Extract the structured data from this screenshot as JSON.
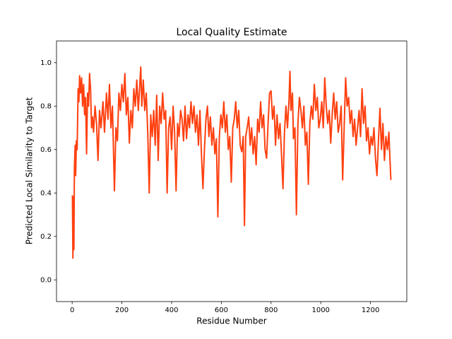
{
  "chart_data": {
    "type": "line",
    "title": "Local Quality Estimate",
    "xlabel": "Residue Number",
    "ylabel": "Predicted Local Similarity to Target",
    "xlim": [
      -63,
      1346
    ],
    "ylim": [
      -0.1,
      1.1
    ],
    "xticks": [
      0,
      200,
      400,
      600,
      800,
      1000,
      1200
    ],
    "yticks": [
      {
        "value": 0,
        "label": "0.0"
      },
      0.2,
      0.4,
      0.6,
      0.8,
      {
        "value": 1,
        "label": "1.0"
      }
    ],
    "x": [
      1,
      3,
      5,
      7,
      9,
      12,
      14,
      17,
      20,
      24,
      27,
      30,
      34,
      38,
      42,
      46,
      50,
      54,
      58,
      62,
      66,
      70,
      74,
      78,
      82,
      86,
      92,
      98,
      104,
      110,
      116,
      124,
      130,
      138,
      144,
      150,
      156,
      162,
      170,
      176,
      182,
      188,
      194,
      200,
      206,
      212,
      218,
      224,
      230,
      236,
      242,
      248,
      254,
      260,
      266,
      272,
      276,
      280,
      286,
      292,
      298,
      304,
      310,
      316,
      322,
      328,
      334,
      340,
      346,
      352,
      358,
      364,
      370,
      376,
      382,
      388,
      394,
      400,
      406,
      412,
      418,
      424,
      430,
      436,
      442,
      448,
      454,
      460,
      466,
      472,
      478,
      484,
      490,
      496,
      502,
      508,
      514,
      520,
      526,
      532,
      538,
      544,
      550,
      556,
      562,
      568,
      574,
      580,
      586,
      592,
      598,
      604,
      610,
      616,
      622,
      628,
      634,
      640,
      646,
      652,
      658,
      664,
      670,
      676,
      682,
      688,
      693,
      698,
      704,
      710,
      716,
      722,
      728,
      734,
      740,
      746,
      752,
      758,
      764,
      770,
      776,
      782,
      788,
      794,
      800,
      806,
      812,
      818,
      824,
      830,
      836,
      842,
      848,
      854,
      860,
      866,
      872,
      876,
      880,
      886,
      890,
      896,
      902,
      908,
      914,
      920,
      926,
      932,
      938,
      944,
      950,
      956,
      962,
      968,
      974,
      980,
      986,
      992,
      998,
      1004,
      1010,
      1016,
      1022,
      1028,
      1034,
      1040,
      1046,
      1052,
      1058,
      1064,
      1070,
      1076,
      1082,
      1088,
      1094,
      1100,
      1106,
      1112,
      1118,
      1124,
      1130,
      1136,
      1142,
      1148,
      1154,
      1160,
      1166,
      1172,
      1178,
      1184,
      1190,
      1196,
      1202,
      1208,
      1214,
      1220,
      1226,
      1232,
      1238,
      1244,
      1250,
      1256,
      1262,
      1268,
      1274,
      1278,
      1282
    ],
    "series": [
      {
        "color": "#ff4010",
        "values": [
          0.39,
          0.1,
          0.38,
          0.14,
          0.52,
          0.62,
          0.48,
          0.64,
          0.6,
          0.88,
          0.82,
          0.94,
          0.86,
          0.93,
          0.8,
          0.9,
          0.76,
          0.84,
          0.58,
          0.86,
          0.8,
          0.95,
          0.88,
          0.7,
          0.75,
          0.68,
          0.8,
          0.72,
          0.55,
          0.78,
          0.7,
          0.82,
          0.68,
          0.86,
          0.74,
          0.9,
          0.7,
          0.8,
          0.41,
          0.7,
          0.64,
          0.86,
          0.78,
          0.9,
          0.82,
          0.95,
          0.76,
          0.84,
          0.63,
          0.78,
          0.7,
          0.88,
          0.8,
          0.92,
          0.78,
          0.9,
          0.98,
          0.8,
          0.92,
          0.78,
          0.86,
          0.68,
          0.4,
          0.76,
          0.66,
          0.78,
          0.62,
          0.85,
          0.55,
          0.8,
          0.72,
          0.86,
          0.74,
          0.78,
          0.4,
          0.7,
          0.75,
          0.6,
          0.8,
          0.68,
          0.41,
          0.72,
          0.66,
          0.78,
          0.74,
          0.64,
          0.8,
          0.65,
          0.76,
          0.7,
          0.82,
          0.72,
          0.8,
          0.68,
          0.76,
          0.62,
          0.78,
          0.58,
          0.42,
          0.6,
          0.74,
          0.8,
          0.66,
          0.75,
          0.62,
          0.7,
          0.58,
          0.65,
          0.29,
          0.66,
          0.76,
          0.7,
          0.82,
          0.68,
          0.76,
          0.6,
          0.66,
          0.45,
          0.7,
          0.74,
          0.82,
          0.7,
          0.78,
          0.62,
          0.59,
          0.66,
          0.25,
          0.66,
          0.7,
          0.75,
          0.62,
          0.7,
          0.58,
          0.66,
          0.53,
          0.74,
          0.68,
          0.82,
          0.7,
          0.76,
          0.6,
          0.56,
          0.72,
          0.86,
          0.87,
          0.74,
          0.8,
          0.62,
          0.76,
          0.65,
          0.72,
          0.58,
          0.42,
          0.68,
          0.8,
          0.7,
          0.82,
          0.96,
          0.78,
          0.86,
          0.65,
          0.7,
          0.3,
          0.72,
          0.84,
          0.78,
          0.7,
          0.8,
          0.62,
          0.68,
          0.44,
          0.72,
          0.8,
          0.74,
          0.9,
          0.78,
          0.84,
          0.7,
          0.74,
          0.82,
          0.7,
          0.93,
          0.8,
          0.72,
          0.78,
          0.63,
          0.76,
          0.86,
          0.74,
          0.82,
          0.68,
          0.72,
          0.8,
          0.46,
          0.7,
          0.93,
          0.8,
          0.84,
          0.72,
          0.78,
          0.66,
          0.74,
          0.62,
          0.7,
          0.78,
          0.66,
          0.88,
          0.72,
          0.8,
          0.64,
          0.7,
          0.58,
          0.66,
          0.62,
          0.7,
          0.56,
          0.48,
          0.64,
          0.79,
          0.6,
          0.72,
          0.55,
          0.66,
          0.6,
          0.68,
          0.56,
          0.46
        ]
      }
    ]
  }
}
